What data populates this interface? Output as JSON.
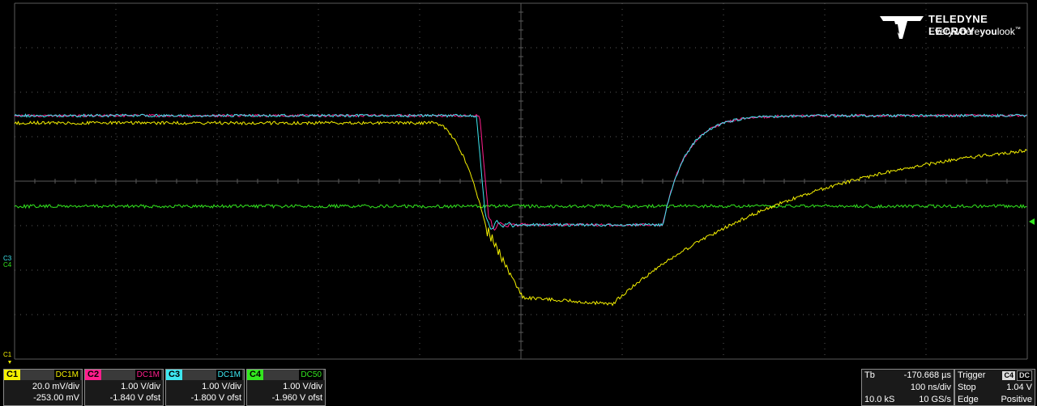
{
  "logo": {
    "brand": "TELEDYNE LECROY",
    "tag_a": "Everywhere",
    "tag_b": "you",
    "tag_c": "look",
    "tm": "™"
  },
  "colors": {
    "c1": "#f4f000",
    "c2": "#ff1e8c",
    "c3": "#3de7f0",
    "c4": "#33e61f",
    "grid": "#5a5a5a"
  },
  "grid": {
    "divisions_x": 10,
    "divisions_y": 8
  },
  "markers": {
    "c1": "C1",
    "c3": "C3",
    "c4": "C4"
  },
  "channels": [
    {
      "id": "C1",
      "coupling": "DC1M",
      "scale": "20.0 mV/div",
      "offset": "-253.00 mV",
      "color": "#f4f000"
    },
    {
      "id": "C2",
      "coupling": "DC1M",
      "scale": "1.00 V/div",
      "offset": "-1.840 V ofst",
      "color": "#ff1e8c"
    },
    {
      "id": "C3",
      "coupling": "DC1M",
      "scale": "1.00 V/div",
      "offset": "-1.800 V ofst",
      "color": "#3de7f0"
    },
    {
      "id": "C4",
      "coupling": "DC50",
      "scale": "1.00 V/div",
      "offset": "-1.960 V ofst",
      "color": "#33e61f"
    }
  ],
  "timebase": {
    "label": "Tb",
    "delay": "-170.668 µs",
    "scale": "100 ns/div",
    "samples": "10.0 kS",
    "rate": "10 GS/s"
  },
  "trigger": {
    "label": "Trigger",
    "source": "C4",
    "coupling": "DC",
    "mode": "Stop",
    "level": "1.04 V",
    "type": "Edge",
    "slope": "Positive"
  }
}
